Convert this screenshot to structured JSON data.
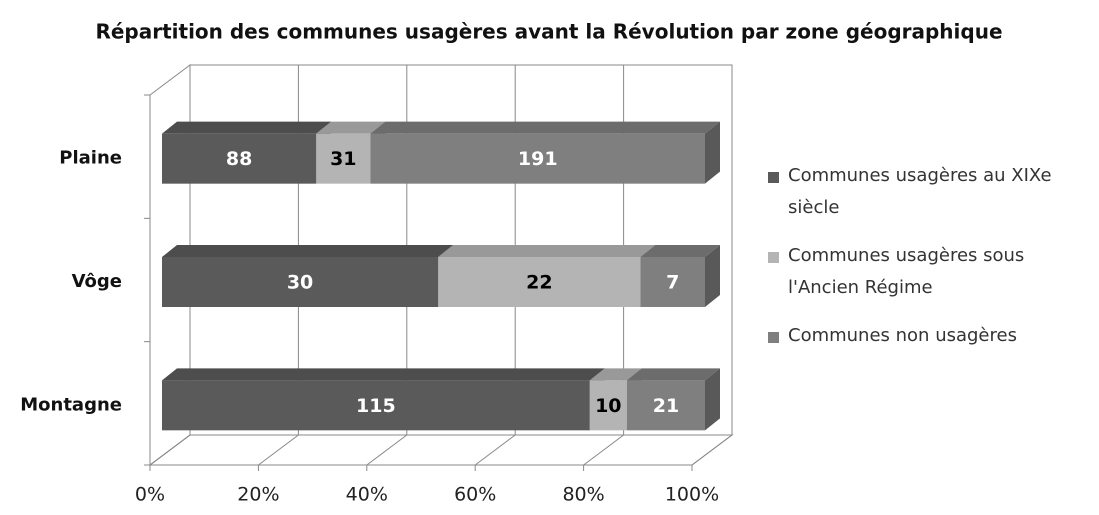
{
  "chart_data": {
    "type": "bar",
    "orientation": "horizontal",
    "stack": "percent",
    "title": "Répartition des communes usagères avant la Révolution par zone géographique",
    "categories": [
      "Plaine",
      "Vôge",
      "Montagne"
    ],
    "series": [
      {
        "name": "Communes usagères au XIXe siècle",
        "color": "#5a5a5a",
        "label_color": "#ffffff",
        "values": [
          88,
          30,
          115
        ]
      },
      {
        "name": "Communes usagères sous l'Ancien Régime",
        "color": "#b4b4b4",
        "label_color": "#000000",
        "values": [
          31,
          22,
          10
        ]
      },
      {
        "name": "Communes non usagères",
        "color": "#7f7f7f",
        "label_color": "#ffffff",
        "values": [
          191,
          7,
          21
        ]
      }
    ],
    "xlim": [
      0,
      100
    ],
    "xticks": [
      {
        "value": 0,
        "label": "0%"
      },
      {
        "value": 20,
        "label": "20%"
      },
      {
        "value": 40,
        "label": "40%"
      },
      {
        "value": 60,
        "label": "60%"
      },
      {
        "value": 80,
        "label": "80%"
      },
      {
        "value": 100,
        "label": "100%"
      }
    ],
    "grid": true,
    "legend": "right"
  }
}
